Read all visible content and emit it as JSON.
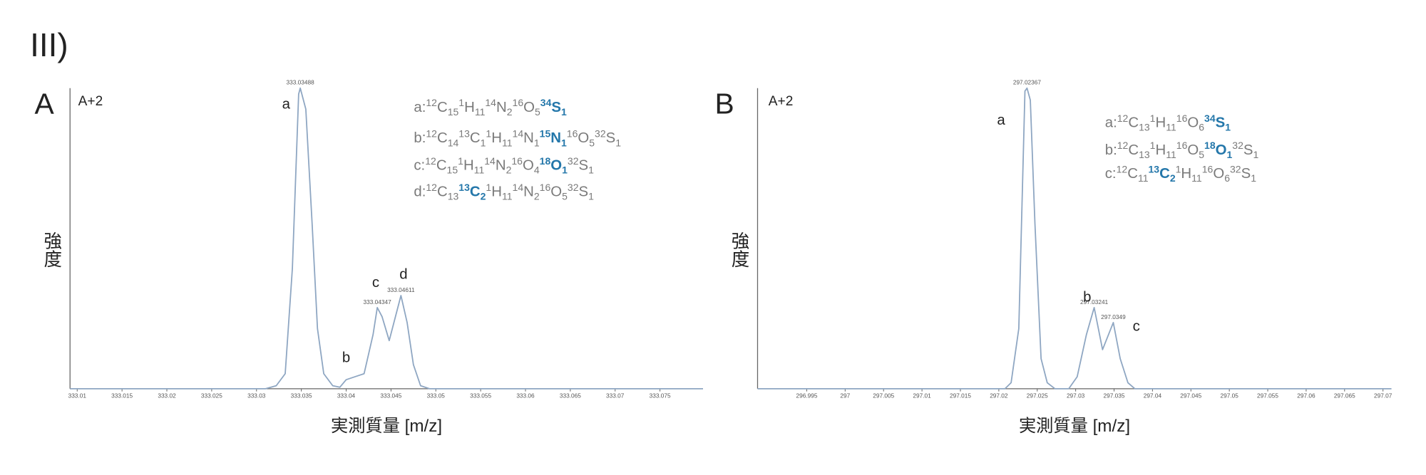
{
  "figure_label": "III)",
  "chart_data": [
    {
      "type": "line",
      "panel": "A",
      "note": "A+2",
      "ylabel": "強度",
      "xlabel": "実測質量 [m/z]",
      "color": "#8ea6c2",
      "xlim": [
        333.0092,
        333.0798
      ],
      "ylim": [
        0,
        100
      ],
      "xticks": [
        333.01,
        333.015,
        333.02,
        333.025,
        333.03,
        333.035,
        333.04,
        333.045,
        333.05,
        333.055,
        333.06,
        333.065,
        333.07,
        333.075
      ],
      "x": [
        333.0092,
        333.031,
        333.0322,
        333.0332,
        333.034,
        333.0347,
        333.03488,
        333.0355,
        333.0362,
        333.0368,
        333.0375,
        333.0385,
        333.0393,
        333.04,
        333.041,
        333.042,
        333.043,
        333.04347,
        333.044,
        333.0448,
        333.0455,
        333.04611,
        333.0468,
        333.0475,
        333.0483,
        333.0493,
        333.0798
      ],
      "values": [
        0,
        0,
        1,
        5,
        40,
        98,
        100,
        93,
        55,
        20,
        5,
        1,
        0.5,
        3,
        4,
        5,
        18,
        27,
        24,
        16,
        24,
        31,
        22,
        8,
        1,
        0,
        0
      ],
      "peak_values": [
        {
          "x": 333.03488,
          "y": 100
        },
        {
          "x": 333.04347,
          "y": 27
        },
        {
          "x": 333.04611,
          "y": 31
        }
      ],
      "peak_letters": [
        {
          "text": "a",
          "x": 333.0333,
          "y": 95
        },
        {
          "text": "b",
          "x": 333.04,
          "y": 10.6
        },
        {
          "text": "c",
          "x": 333.0433,
          "y": 35.6
        },
        {
          "text": "d",
          "x": 333.0464,
          "y": 38.4
        }
      ],
      "highlight_color": "#2477aa",
      "formulas": [
        [
          {
            "text": "a:"
          },
          {
            "sup": "12"
          },
          {
            "text": "C"
          },
          {
            "sub": "15"
          },
          {
            "sup": "1"
          },
          {
            "text": "H"
          },
          {
            "sub": "11"
          },
          {
            "sup": "14"
          },
          {
            "text": "N"
          },
          {
            "sub": "2"
          },
          {
            "sup": "16"
          },
          {
            "text": "O"
          },
          {
            "sub": "5"
          },
          {
            "sup": "34",
            "highlight": true
          },
          {
            "text": "S",
            "highlight": true
          },
          {
            "sub": "1",
            "highlight": true
          }
        ],
        [
          {
            "text": "b:"
          },
          {
            "sup": "12"
          },
          {
            "text": "C"
          },
          {
            "sub": "14"
          },
          {
            "sup": "13"
          },
          {
            "text": "C"
          },
          {
            "sub": "1"
          },
          {
            "sup": "1"
          },
          {
            "text": "H"
          },
          {
            "sub": "11"
          },
          {
            "sup": "14"
          },
          {
            "text": "N"
          },
          {
            "sub": "1"
          },
          {
            "sup": "15",
            "highlight": true
          },
          {
            "text": "N",
            "highlight": true
          },
          {
            "sub": "1",
            "highlight": true
          },
          {
            "sup": "16"
          },
          {
            "text": "O"
          },
          {
            "sub": "5"
          },
          {
            "sup": "32"
          },
          {
            "text": "S"
          },
          {
            "sub": "1"
          }
        ],
        [
          {
            "text": "c:"
          },
          {
            "sup": "12"
          },
          {
            "text": "C"
          },
          {
            "sub": "15"
          },
          {
            "sup": "1"
          },
          {
            "text": "H"
          },
          {
            "sub": "11"
          },
          {
            "sup": "14"
          },
          {
            "text": "N"
          },
          {
            "sub": "2"
          },
          {
            "sup": "16"
          },
          {
            "text": "O"
          },
          {
            "sub": "4"
          },
          {
            "sup": "18",
            "highlight": true
          },
          {
            "text": "O",
            "highlight": true
          },
          {
            "sub": "1",
            "highlight": true
          },
          {
            "sup": "32"
          },
          {
            "text": "S"
          },
          {
            "sub": "1"
          }
        ],
        [
          {
            "text": "d:"
          },
          {
            "sup": "12"
          },
          {
            "text": "C"
          },
          {
            "sub": "13"
          },
          {
            "sup": "13",
            "highlight": true
          },
          {
            "text": "C",
            "highlight": true
          },
          {
            "sub": "2",
            "highlight": true
          },
          {
            "sup": "1"
          },
          {
            "text": "H"
          },
          {
            "sub": "11"
          },
          {
            "sup": "14"
          },
          {
            "text": "N"
          },
          {
            "sub": "2"
          },
          {
            "sup": "16"
          },
          {
            "text": "O"
          },
          {
            "sub": "5"
          },
          {
            "sup": "32"
          },
          {
            "text": "S"
          },
          {
            "sub": "1"
          }
        ]
      ]
    },
    {
      "type": "line",
      "panel": "B",
      "note": "A+2",
      "ylabel": "強度",
      "xlabel": "実測質量 [m/z]",
      "color": "#8ea6c2",
      "xlim": [
        296.9886,
        297.0711
      ],
      "ylim": [
        0,
        100
      ],
      "xticks": [
        296.995,
        297,
        297.005,
        297.01,
        297.015,
        297.02,
        297.025,
        297.03,
        297.035,
        297.04,
        297.045,
        297.05,
        297.055,
        297.06,
        297.065,
        297.07
      ],
      "x": [
        296.9886,
        297.0208,
        297.0216,
        297.0226,
        297.0234,
        297.02367,
        297.0241,
        297.0247,
        297.0255,
        297.0263,
        297.0273,
        297.0291,
        297.0302,
        297.0314,
        297.03241,
        297.0335,
        297.0349,
        297.0358,
        297.0368,
        297.0377,
        297.0711
      ],
      "values": [
        0,
        0,
        2,
        20,
        99,
        100,
        96,
        55,
        10,
        2,
        0,
        0,
        4,
        18,
        27,
        13,
        22,
        10,
        2,
        0,
        0
      ],
      "peak_values": [
        {
          "x": 297.02367,
          "y": 100
        },
        {
          "x": 297.03241,
          "y": 27
        },
        {
          "x": 297.0349,
          "y": 22
        }
      ],
      "peak_letters": [
        {
          "text": "a",
          "x": 297.0203,
          "y": 89.7
        },
        {
          "text": "b",
          "x": 297.0315,
          "y": 30.8
        },
        {
          "text": "c",
          "x": 297.0379,
          "y": 21.1
        }
      ],
      "highlight_color": "#2477aa",
      "formulas": [
        [
          {
            "text": "a:"
          },
          {
            "sup": "12"
          },
          {
            "text": "C"
          },
          {
            "sub": "13"
          },
          {
            "sup": "1"
          },
          {
            "text": "H"
          },
          {
            "sub": "11"
          },
          {
            "sup": "16"
          },
          {
            "text": "O"
          },
          {
            "sub": "6"
          },
          {
            "sup": "34",
            "highlight": true
          },
          {
            "text": "S",
            "highlight": true
          },
          {
            "sub": "1",
            "highlight": true
          }
        ],
        [
          {
            "text": "b:"
          },
          {
            "sup": "12"
          },
          {
            "text": "C"
          },
          {
            "sub": "13"
          },
          {
            "sup": "1"
          },
          {
            "text": "H"
          },
          {
            "sub": "11"
          },
          {
            "sup": "16"
          },
          {
            "text": "O"
          },
          {
            "sub": "5"
          },
          {
            "sup": "18",
            "highlight": true
          },
          {
            "text": "O",
            "highlight": true
          },
          {
            "sub": "1",
            "highlight": true
          },
          {
            "sup": "32"
          },
          {
            "text": "S"
          },
          {
            "sub": "1"
          }
        ],
        [
          {
            "text": "c:"
          },
          {
            "sup": "12"
          },
          {
            "text": "C"
          },
          {
            "sub": "11"
          },
          {
            "sup": "13",
            "highlight": true
          },
          {
            "text": "C",
            "highlight": true
          },
          {
            "sub": "2",
            "highlight": true
          },
          {
            "sup": "1"
          },
          {
            "text": "H"
          },
          {
            "sub": "11"
          },
          {
            "sup": "16"
          },
          {
            "text": "O"
          },
          {
            "sub": "6"
          },
          {
            "sup": "32"
          },
          {
            "text": "S"
          },
          {
            "sub": "1"
          }
        ]
      ]
    }
  ]
}
